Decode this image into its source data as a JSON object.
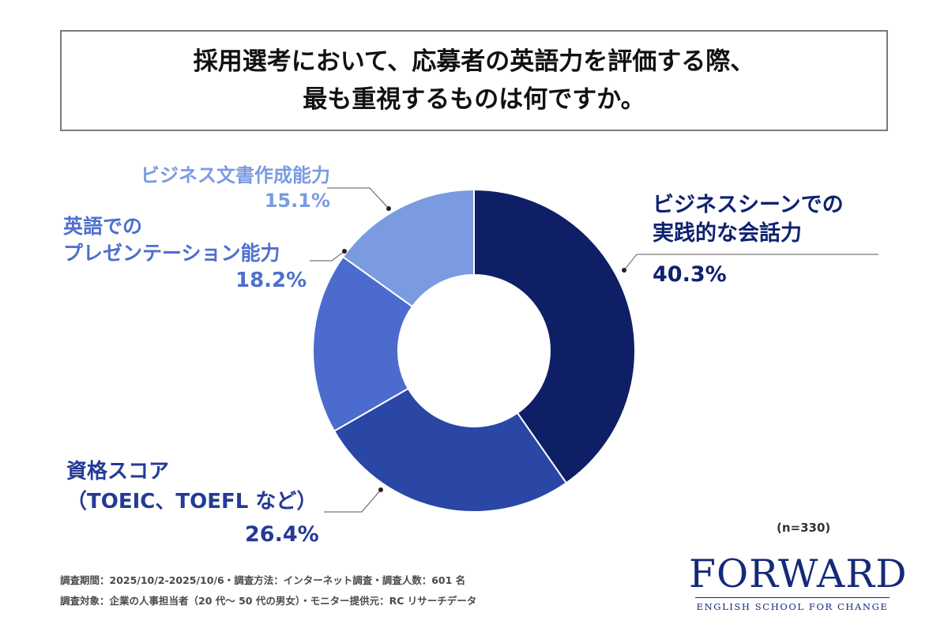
{
  "title": {
    "line1": "採用選考において、応募者の英語力を評価する際、",
    "line2": "最も重視するものは何ですか。"
  },
  "chart_data": {
    "type": "pie",
    "subtype": "donut",
    "unit": "%",
    "slices": [
      {
        "label_lines": [
          "ビジネスシーンでの",
          "実践的な会話力"
        ],
        "value": 40.3,
        "value_label": "40.3%",
        "color": "#0e1f66"
      },
      {
        "label_lines": [
          "資格スコア",
          "（TOEIC、TOEFL など）"
        ],
        "value": 26.4,
        "value_label": "26.4%",
        "color": "#2a47a6"
      },
      {
        "label_lines": [
          "英語での",
          "プレゼンテーション能力"
        ],
        "value": 18.2,
        "value_label": "18.2%",
        "color": "#4c6bce"
      },
      {
        "label_lines": [
          "ビジネス文書作成能力"
        ],
        "value": 15.1,
        "value_label": "15.1%",
        "color": "#7b9be0"
      }
    ],
    "sample_size": "(n=330)"
  },
  "footnotes": {
    "line1": "調査期間：2025/10/2-2025/10/6・調査方法：インターネット調査・調査人数：601 名",
    "line2": "調査対象：企業の人事担当者（20 代〜 50 代の男女）・モニター提供元：RC リサーチデータ"
  },
  "brand": {
    "name": "FORWARD",
    "tagline": "ENGLISH SCHOOL FOR CHANGE",
    "color": "#142a78"
  }
}
